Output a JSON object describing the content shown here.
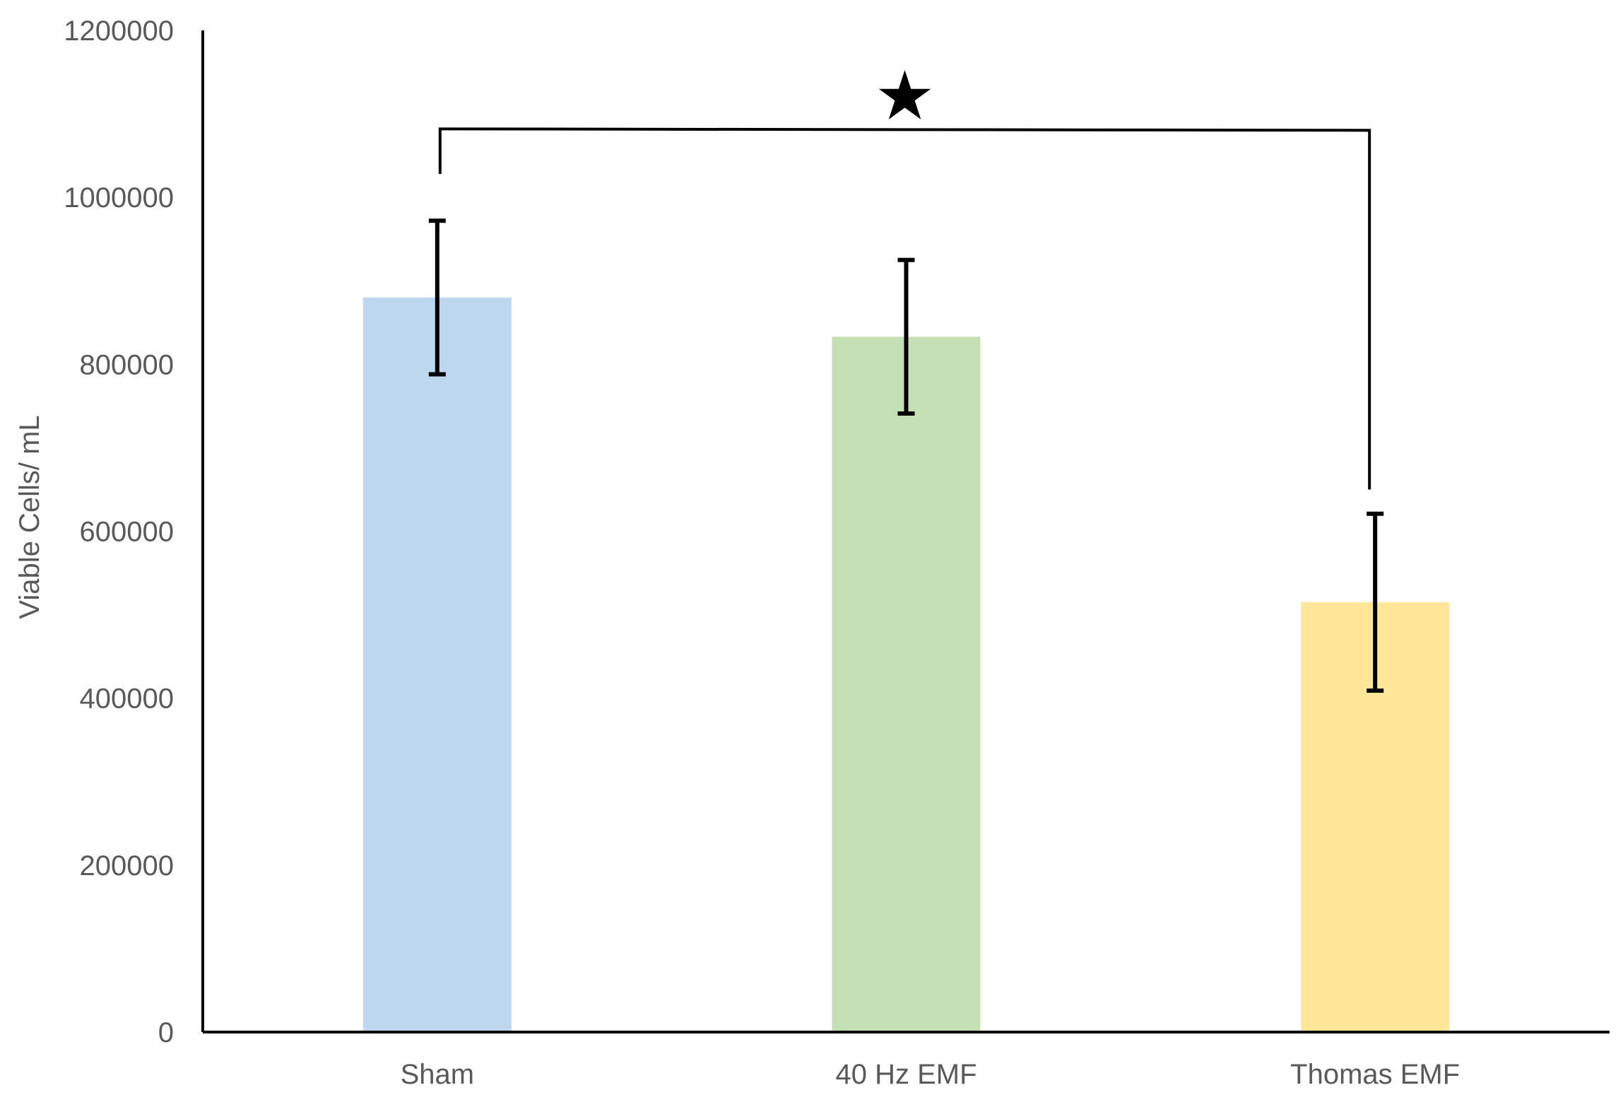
{
  "chart_data": {
    "type": "bar",
    "title": "",
    "xlabel": "",
    "ylabel": "Viable Cells/ mL",
    "ylim": [
      0,
      1200000
    ],
    "yticks": [
      0,
      200000,
      400000,
      600000,
      800000,
      1000000,
      1200000
    ],
    "ytick_labels": [
      "0",
      "200000",
      "400000",
      "600000",
      "800000",
      "1000000",
      "1200000"
    ],
    "grid": false,
    "legend": "none",
    "categories": [
      "Sham",
      "40 Hz EMF",
      "Thomas EMF"
    ],
    "values": [
      880000,
      833000,
      515000
    ],
    "error": [
      92000,
      92000,
      106000
    ],
    "colors": [
      "#bdd7ee",
      "#c5e0b4",
      "#ffe699"
    ],
    "significance": {
      "from_category": "Sham",
      "to_category": "Thomas EMF",
      "marker": "★",
      "bracket_level": 1082000,
      "left_drop_to": 1028000,
      "right_drop_to": 650000
    }
  }
}
